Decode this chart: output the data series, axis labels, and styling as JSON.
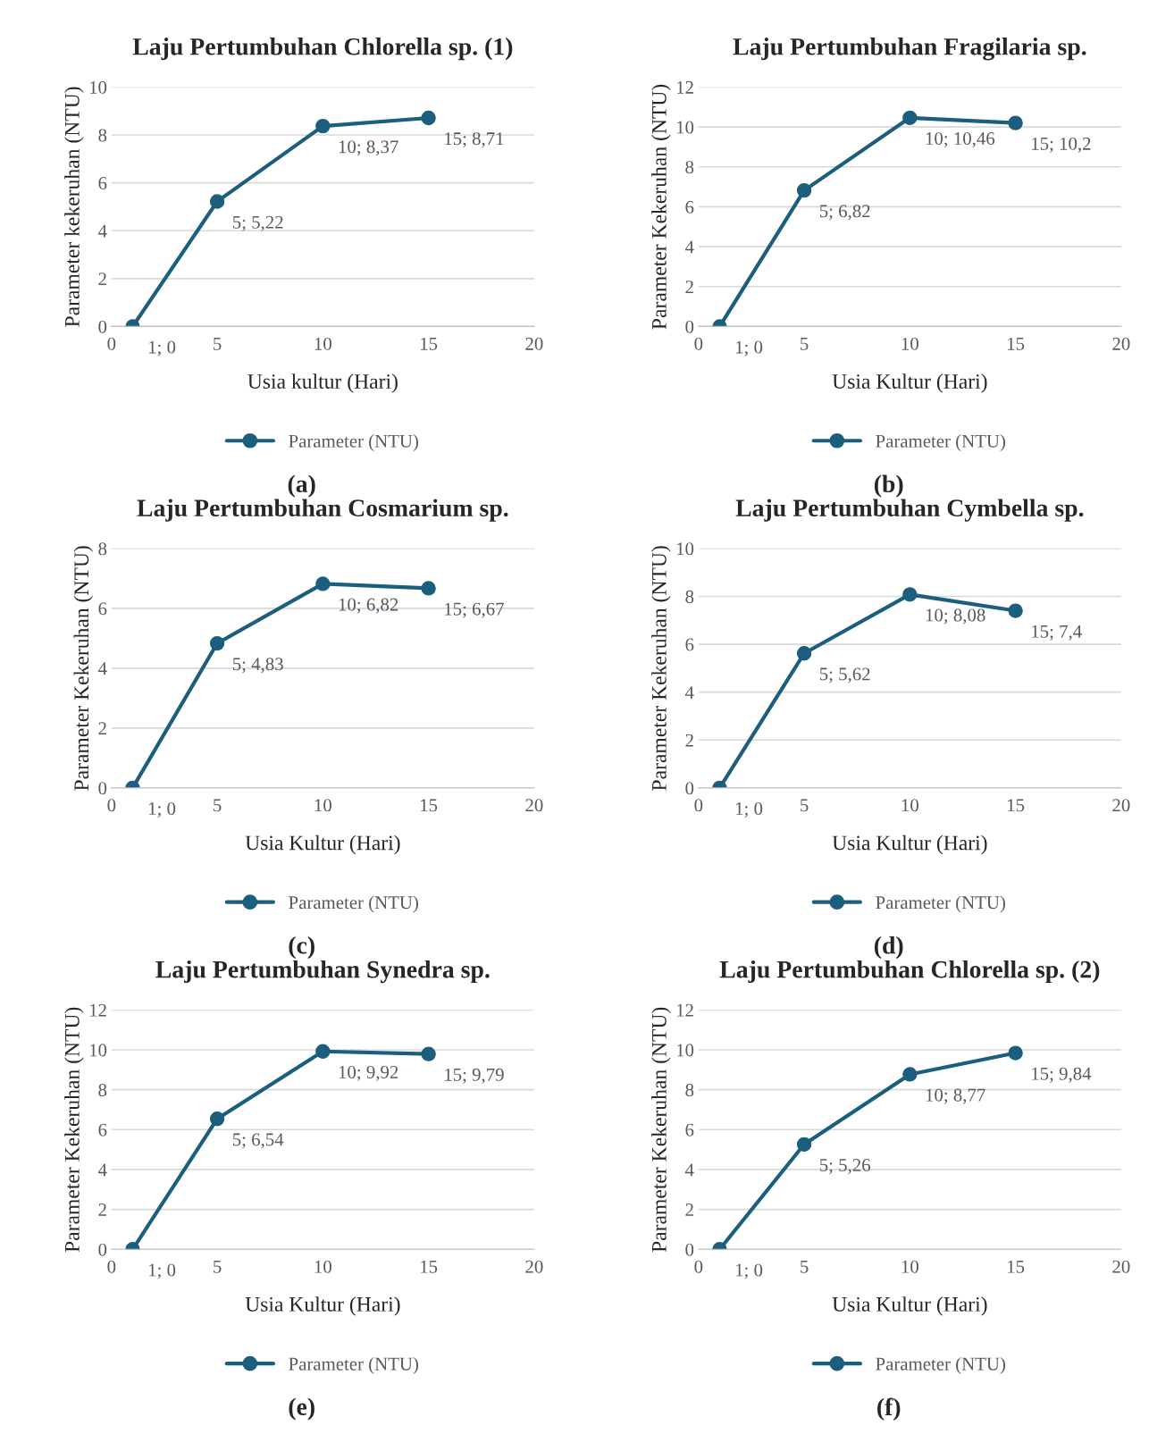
{
  "chart_data": [
    {
      "type": "line",
      "title": "Laju Pertumbuhan Chlorella sp. (1)",
      "xlabel": "Usia kultur (Hari)",
      "ylabel": "Parameter kekeruhan (NTU)",
      "x": [
        1,
        5,
        10,
        15
      ],
      "series": [
        {
          "name": "Parameter (NTU)",
          "color": "#1b5e7e",
          "values": [
            0,
            5.22,
            8.37,
            8.71
          ],
          "value_labels": [
            "1; 0",
            "5; 5,22",
            "10; 8,37",
            "15; 8,71"
          ]
        }
      ],
      "xlim": [
        0,
        20
      ],
      "xticks": [
        0,
        5,
        10,
        15,
        20
      ],
      "ylim": [
        0,
        10
      ],
      "yticks": [
        0,
        2,
        4,
        6,
        8,
        10
      ],
      "grid": "y",
      "legend": "bottom",
      "marker": "circle",
      "line_style": "solid",
      "annotations": [
        "(a)"
      ]
    },
    {
      "type": "line",
      "title": "Laju Pertumbuhan Fragilaria sp.",
      "xlabel": "Usia Kultur (Hari)",
      "ylabel": "Parameter Kekeruhan (NTU)",
      "x": [
        1,
        5,
        10,
        15
      ],
      "series": [
        {
          "name": "Parameter (NTU)",
          "color": "#1b5e7e",
          "values": [
            0,
            6.82,
            10.46,
            10.2
          ],
          "value_labels": [
            "1; 0",
            "5; 6,82",
            "10; 10,46",
            "15; 10,2"
          ]
        }
      ],
      "xlim": [
        0,
        20
      ],
      "xticks": [
        0,
        5,
        10,
        15,
        20
      ],
      "ylim": [
        0,
        12
      ],
      "yticks": [
        0,
        2,
        4,
        6,
        8,
        10,
        12
      ],
      "grid": "y",
      "legend": "bottom",
      "marker": "circle",
      "line_style": "solid",
      "annotations": [
        "(b)"
      ]
    },
    {
      "type": "line",
      "title": "Laju Pertumbuhan Cosmarium sp.",
      "xlabel": "Usia Kultur (Hari)",
      "ylabel": "Parameter Kekeruhan (NTU)",
      "x": [
        1,
        5,
        10,
        15
      ],
      "series": [
        {
          "name": "Parameter (NTU)",
          "color": "#1b5e7e",
          "values": [
            0,
            4.83,
            6.82,
            6.67
          ],
          "value_labels": [
            "1; 0",
            "5; 4,83",
            "10; 6,82",
            "15; 6,67"
          ]
        }
      ],
      "xlim": [
        0,
        20
      ],
      "xticks": [
        0,
        5,
        10,
        15,
        20
      ],
      "ylim": [
        0,
        8
      ],
      "yticks": [
        0,
        2,
        4,
        6,
        8
      ],
      "grid": "y",
      "legend": "bottom",
      "marker": "circle",
      "line_style": "solid",
      "annotations": [
        "(c)"
      ]
    },
    {
      "type": "line",
      "title": "Laju Pertumbuhan Cymbella sp.",
      "xlabel": "Usia Kultur (Hari)",
      "ylabel": "Parameter Kekeruhan (NTU)",
      "x": [
        1,
        5,
        10,
        15
      ],
      "series": [
        {
          "name": "Parameter (NTU)",
          "color": "#1b5e7e",
          "values": [
            0,
            5.62,
            8.08,
            7.4
          ],
          "value_labels": [
            "1; 0",
            "5; 5,62",
            "10; 8,08",
            "15; 7,4"
          ]
        }
      ],
      "xlim": [
        0,
        20
      ],
      "xticks": [
        0,
        5,
        10,
        15,
        20
      ],
      "ylim": [
        0,
        10
      ],
      "yticks": [
        0,
        2,
        4,
        6,
        8,
        10
      ],
      "grid": "y",
      "legend": "bottom",
      "marker": "circle",
      "line_style": "solid",
      "annotations": [
        "(d)"
      ]
    },
    {
      "type": "line",
      "title": "Laju Pertumbuhan Synedra sp.",
      "xlabel": "Usia Kultur (Hari)",
      "ylabel": "Parameter Kekeruhan (NTU)",
      "x": [
        1,
        5,
        10,
        15
      ],
      "series": [
        {
          "name": "Parameter (NTU)",
          "color": "#1b5e7e",
          "values": [
            0,
            6.54,
            9.92,
            9.79
          ],
          "value_labels": [
            "1; 0",
            "5; 6,54",
            "10; 9,92",
            "15; 9,79"
          ]
        }
      ],
      "xlim": [
        0,
        20
      ],
      "xticks": [
        0,
        5,
        10,
        15,
        20
      ],
      "ylim": [
        0,
        12
      ],
      "yticks": [
        0,
        2,
        4,
        6,
        8,
        10,
        12
      ],
      "grid": "y",
      "legend": "bottom",
      "marker": "circle",
      "line_style": "solid",
      "annotations": [
        "(e)"
      ]
    },
    {
      "type": "line",
      "title": "Laju Pertumbuhan Chlorella sp. (2)",
      "xlabel": "Usia Kultur (Hari)",
      "ylabel": "Parameter Kekeruhan (NTU)",
      "x": [
        1,
        5,
        10,
        15
      ],
      "series": [
        {
          "name": "Parameter (NTU)",
          "color": "#1b5e7e",
          "values": [
            0,
            5.26,
            8.77,
            9.84
          ],
          "value_labels": [
            "1; 0",
            "5; 5,26",
            "10; 8,77",
            "15; 9,84"
          ]
        }
      ],
      "xlim": [
        0,
        20
      ],
      "xticks": [
        0,
        5,
        10,
        15,
        20
      ],
      "ylim": [
        0,
        12
      ],
      "yticks": [
        0,
        2,
        4,
        6,
        8,
        10,
        12
      ],
      "grid": "y",
      "legend": "bottom",
      "marker": "circle",
      "line_style": "solid",
      "annotations": [
        "(f)"
      ]
    }
  ]
}
